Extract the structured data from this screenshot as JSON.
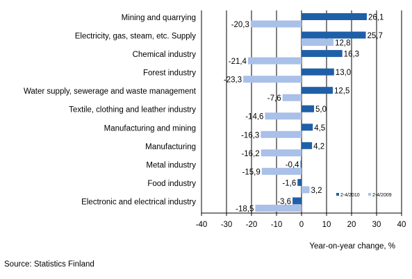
{
  "chart_data": {
    "type": "bar",
    "orientation": "horizontal",
    "categories": [
      "Mining and quarrying",
      "Electricity, gas, steam, etc. Supply",
      "Chemical industry",
      "Forest industry",
      "Water supply, sewerage and waste management",
      "Textile, clothing and leather industry",
      "Manufacturing and mining",
      "Manufacturing",
      "Metal industry",
      "Food industry",
      "Electronic and electrical industry"
    ],
    "series": [
      {
        "name": "2-4/2010",
        "color": "#1f5fa8",
        "values": [
          26.1,
          25.7,
          16.3,
          13.0,
          12.5,
          5.0,
          4.5,
          4.2,
          -0.4,
          -1.6,
          -3.6
        ],
        "labels": [
          "26,1",
          "25,7",
          "16,3",
          "13,0",
          "12,5",
          "5,0",
          "4,5",
          "4,2",
          "-0,4",
          "-1,6",
          "-3,6"
        ]
      },
      {
        "name": "2-4/2009",
        "color": "#a9c0e8",
        "values": [
          -20.3,
          12.8,
          -21.4,
          -23.3,
          -7.6,
          -14.6,
          -16.3,
          -16.2,
          -15.9,
          3.2,
          -18.5
        ],
        "labels": [
          "-20,3",
          "12,8",
          "-21,4",
          "-23,3",
          "-7,6",
          "-14,6",
          "-16,3",
          "-16,2",
          "-15,9",
          "3,2",
          "-18,5"
        ]
      }
    ],
    "xlim": [
      -40,
      40
    ],
    "xticks": [
      "-40",
      "-30",
      "-20",
      "-10",
      "0",
      "10",
      "20",
      "30",
      "40"
    ],
    "xlabel": "Year-on-year change, %",
    "grid": "vertical",
    "legend_position": "bottom-right"
  },
  "source": "Source: Statistics Finland"
}
